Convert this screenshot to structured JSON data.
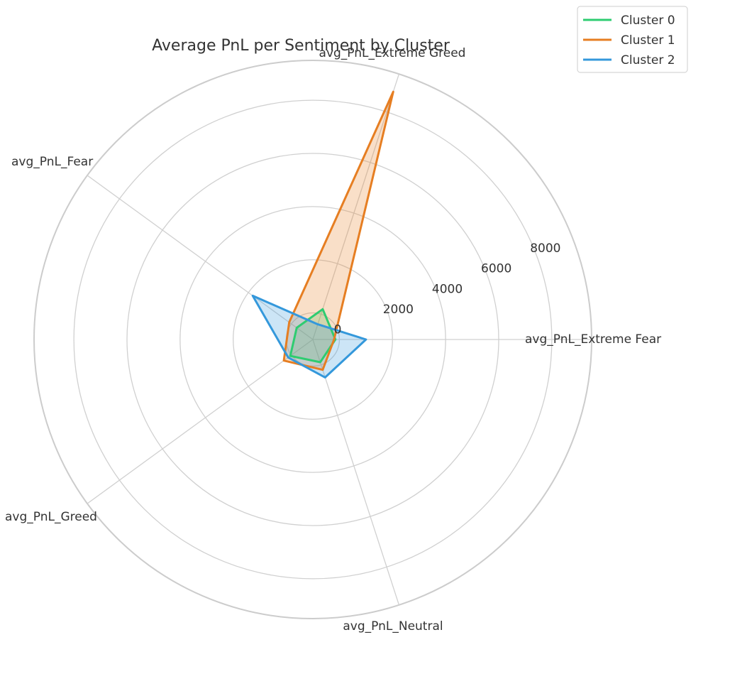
{
  "chart_data": {
    "type": "radar",
    "title": "Average PnL per Sentiment by Cluster",
    "axes": [
      "avg_PnL_Extreme Fear",
      "avg_PnL_Extreme Greed",
      "avg_PnL_Fear",
      "avg_PnL_Greed",
      "avg_PnL_Neutral"
    ],
    "angles_deg": [
      0,
      72,
      144,
      216,
      288
    ],
    "r_ticks": [
      0,
      2000,
      4000,
      6000,
      8000
    ],
    "r_range": [
      -1000,
      9500
    ],
    "grid": true,
    "legend_position": "top-right",
    "series": [
      {
        "name": "Cluster 0",
        "color": "#2ecc71",
        "values": [
          -150,
          200,
          -250,
          50,
          -100
        ]
      },
      {
        "name": "Cluster 1",
        "color": "#e67e22",
        "values": [
          -200,
          8800,
          100,
          350,
          200
        ]
      },
      {
        "name": "Cluster 2",
        "color": "#3498db",
        "values": [
          1000,
          -400,
          1800,
          150,
          500
        ]
      }
    ]
  }
}
